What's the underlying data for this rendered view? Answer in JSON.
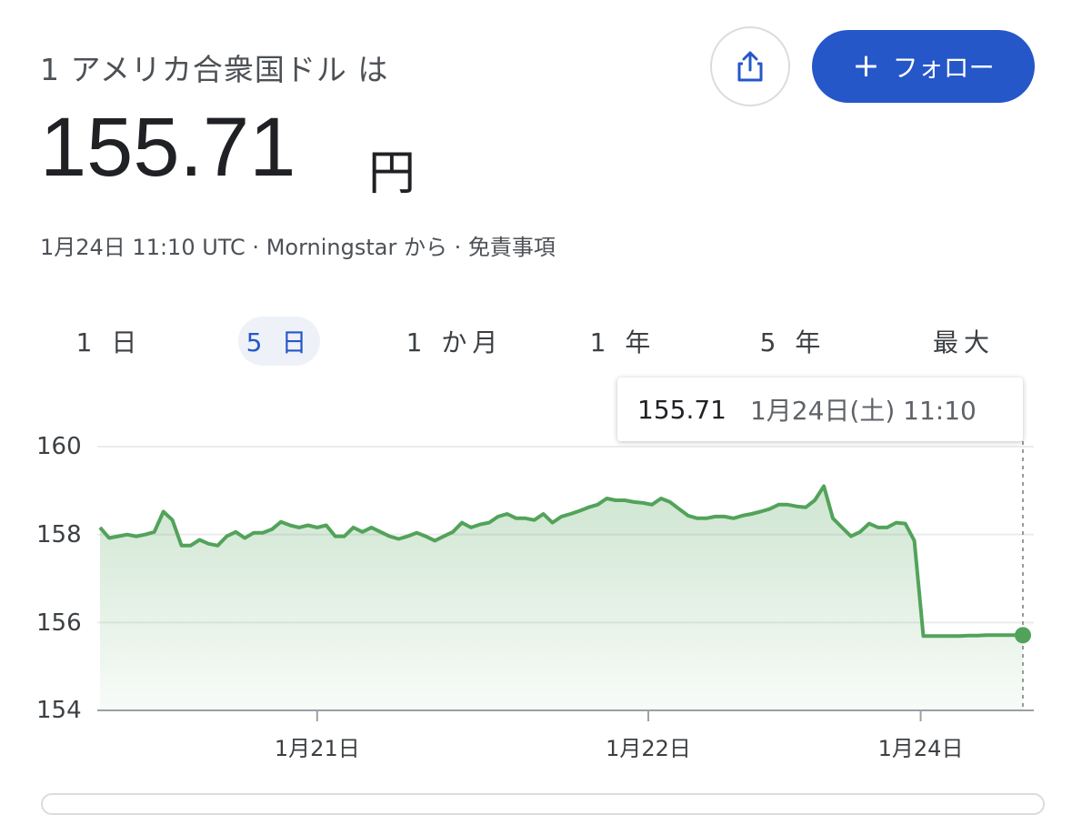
{
  "header": {
    "title": "1 アメリカ合衆国ドル は",
    "price": "155.71",
    "unit": "円",
    "meta": "1月24日 11:10 UTC · Morningstar から · 免責事項",
    "share_icon": "share-icon",
    "follow_label": "フォロー",
    "follow_icon": "plus-icon"
  },
  "tabs": [
    {
      "label": "1 日",
      "selected": false
    },
    {
      "label": "5 日",
      "selected": true
    },
    {
      "label": "1 か月",
      "selected": false
    },
    {
      "label": "1 年",
      "selected": false
    },
    {
      "label": "5 年",
      "selected": false
    },
    {
      "label": "最大",
      "selected": false
    }
  ],
  "tooltip": {
    "price": "155.71",
    "time": "1月24日(土) 11:10"
  },
  "colors": {
    "accent": "#2557c9",
    "line": "#52a35a"
  },
  "chart_data": {
    "type": "area",
    "ylim": [
      154,
      160
    ],
    "yticks": [
      "160",
      "158",
      "156",
      "154"
    ],
    "grid": true,
    "xticks": [
      {
        "label": "1月21日",
        "at": 24
      },
      {
        "label": "1月22日",
        "at": 60.6
      },
      {
        "label": "1月24日",
        "at": 90.7
      }
    ],
    "values": [
      158.16,
      157.92,
      157.96,
      158.0,
      157.96,
      158.0,
      158.06,
      158.52,
      158.33,
      157.75,
      157.75,
      157.88,
      157.79,
      157.75,
      157.96,
      158.06,
      157.92,
      158.04,
      158.04,
      158.12,
      158.29,
      158.21,
      158.16,
      158.21,
      158.16,
      158.21,
      157.96,
      157.96,
      158.16,
      158.06,
      158.16,
      158.06,
      157.96,
      157.9,
      157.96,
      158.04,
      157.96,
      157.86,
      157.96,
      158.06,
      158.27,
      158.16,
      158.23,
      158.27,
      158.41,
      158.47,
      158.37,
      158.37,
      158.33,
      158.47,
      158.27,
      158.41,
      158.47,
      158.54,
      158.62,
      158.68,
      158.82,
      158.78,
      158.78,
      158.74,
      158.72,
      158.68,
      158.82,
      158.74,
      158.58,
      158.43,
      158.37,
      158.37,
      158.41,
      158.41,
      158.37,
      158.43,
      158.47,
      158.52,
      158.58,
      158.68,
      158.68,
      158.64,
      158.62,
      158.78,
      159.1,
      158.37,
      158.16,
      157.96,
      158.06,
      158.25,
      158.16,
      158.16,
      158.27,
      158.25,
      157.86,
      155.69,
      155.69,
      155.69,
      155.69,
      155.69,
      155.7,
      155.7,
      155.71,
      155.71,
      155.71,
      155.71,
      155.71
    ]
  }
}
